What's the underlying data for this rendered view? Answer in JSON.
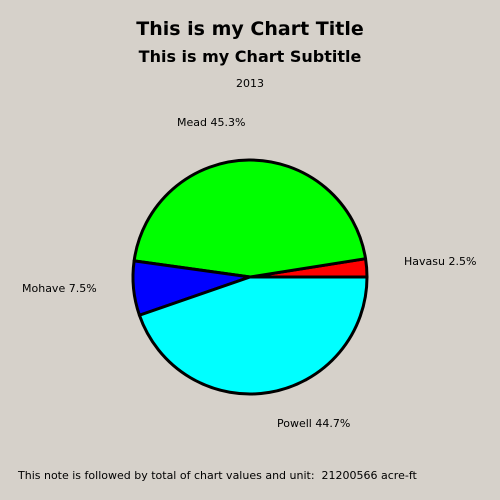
{
  "chart_data": {
    "type": "pie",
    "title": "This is my Chart Title",
    "subtitle": "This is my Chart Subtitle",
    "period": "2013",
    "slices": [
      {
        "name": "Havasu",
        "percent": 2.5,
        "color": "#ff0000",
        "label": "Havasu  2.5%"
      },
      {
        "name": "Mead",
        "percent": 45.3,
        "color": "#00ff00",
        "label": "Mead  45.3%"
      },
      {
        "name": "Mohave",
        "percent": 7.5,
        "color": "#0000ff",
        "label": "Mohave  7.5%"
      },
      {
        "name": "Powell",
        "percent": 44.7,
        "color": "#00ffff",
        "label": "Powell  44.7%"
      }
    ],
    "note": "This note is followed by total of chart values and unit:  21200566 acre-ft"
  }
}
